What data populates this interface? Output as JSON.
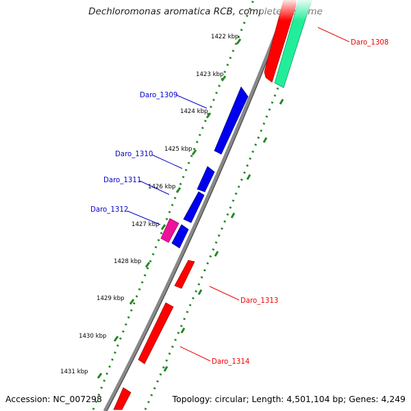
{
  "title": "Dechloromonas aromatica RCB, complete genome",
  "ticks": [
    "1422 kbp",
    "1423 kbp",
    "1424 kbp",
    "1425 kbp",
    "1426 kbp",
    "1427 kbp",
    "1428 kbp",
    "1429 kbp",
    "1430 kbp",
    "1431 kbp"
  ],
  "genes": [
    {
      "label": "Daro_1308",
      "color": "#ee0000"
    },
    {
      "label": "Daro_1309",
      "color": "#0000cc"
    },
    {
      "label": "Daro_1310",
      "color": "#0000cc"
    },
    {
      "label": "Daro_1311",
      "color": "#0000cc"
    },
    {
      "label": "Daro_1312",
      "color": "#0000cc"
    },
    {
      "label": "Daro_1313",
      "color": "#ee0000"
    },
    {
      "label": "Daro_1314",
      "color": "#ee0000"
    }
  ],
  "colors": {
    "forward_strand": "#0000ee",
    "reverse_strand": "#ff0000",
    "rna": "#ee1199",
    "other_feature": "#22ee99",
    "backbone": "#888888",
    "tick_dots": "#228822"
  },
  "footer": {
    "accession": "Accession: NC_007298",
    "stats": "Topology: circular; Length: 4,501,104 bp; Genes: 4,249"
  }
}
